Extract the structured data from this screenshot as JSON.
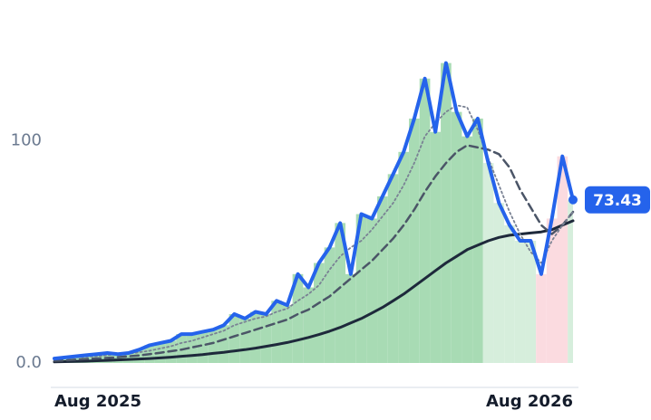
{
  "chart_data": {
    "type": "line",
    "categories": [
      "Aug 2025",
      null,
      null,
      null,
      null,
      null,
      null,
      null,
      null,
      null,
      null,
      null,
      null,
      null,
      null,
      null,
      null,
      null,
      null,
      null,
      null,
      null,
      null,
      null,
      null,
      null,
      null,
      null,
      null,
      null,
      null,
      null,
      null,
      null,
      null,
      null,
      null,
      null,
      null,
      null,
      null,
      null,
      null,
      null,
      null,
      null,
      null,
      null,
      null,
      "Aug 2026"
    ],
    "ylim": [
      -11,
      143
    ],
    "yticks": [
      {
        "value": 0,
        "label": "0.0"
      },
      100
    ],
    "bar_colors": [
      "#a8dbb4",
      "#a8dbb4",
      "#a8dbb4",
      "#a8dbb4",
      "#a8dbb4",
      "#a8dbb4",
      "#a8dbb4",
      "#a8dbb4",
      "#a8dbb4",
      "#a8dbb4",
      "#a8dbb4",
      "#a8dbb4",
      "#a8dbb4",
      "#a8dbb4",
      "#a8dbb4",
      "#a8dbb4",
      "#a8dbb4",
      "#a8dbb4",
      "#a8dbb4",
      "#a8dbb4",
      "#a8dbb4",
      "#a8dbb4",
      "#a8dbb4",
      "#a8dbb4",
      "#a8dbb4",
      "#a8dbb4",
      "#a8dbb4",
      "#a8dbb4",
      "#a8dbb4",
      "#a8dbb4",
      "#a8dbb4",
      "#a8dbb4",
      "#a8dbb4",
      "#a8dbb4",
      "#a8dbb4",
      "#a8dbb4",
      "#a8dbb4",
      "#a8dbb4",
      "#a8dbb4",
      "#a8dbb4",
      "#a8dbb4",
      "#d6eedc",
      "#d6eedc",
      "#d6eedc",
      "#d6eedc",
      "#d6eedc",
      "#fbdbe0",
      "#fbdbe0",
      "#fbdbe0",
      "#d6eedc"
    ],
    "series": [
      {
        "color": "#1e293b",
        "style": "solid",
        "width": 3,
        "values": [
          0.5,
          0.6,
          0.7,
          0.8,
          1,
          1.2,
          1.4,
          1.6,
          1.8,
          2,
          2.3,
          2.6,
          3,
          3.4,
          3.8,
          4.3,
          4.8,
          5.4,
          6,
          6.7,
          7.5,
          8.3,
          9.2,
          10.3,
          11.5,
          12.8,
          14.3,
          16,
          18,
          20,
          22.5,
          25,
          28,
          31,
          34.5,
          38,
          41.5,
          45,
          48,
          51,
          53,
          55,
          56.5,
          57.5,
          58,
          58.5,
          59,
          60,
          62,
          64
        ]
      },
      {
        "color": "#4b5567",
        "style": "dashed",
        "width": 2.5,
        "values": [
          1,
          1.2,
          1.5,
          1.8,
          2,
          2.3,
          2.6,
          3,
          3.4,
          4,
          4.6,
          5.3,
          6,
          7,
          8,
          9,
          10.5,
          12,
          13.5,
          15,
          16.5,
          18,
          19.5,
          22,
          24,
          27,
          30,
          34,
          38,
          42,
          46,
          51,
          56,
          62,
          69,
          77,
          84,
          90,
          95,
          98,
          97,
          96,
          94,
          88,
          78,
          70,
          62,
          58,
          62,
          68
        ]
      },
      {
        "color": "#7a8294",
        "style": "dotted",
        "width": 1.8,
        "values": [
          2,
          2.2,
          2.5,
          2.8,
          3,
          3.5,
          4,
          4.2,
          4.8,
          5.5,
          6.5,
          7.5,
          9,
          10,
          11.5,
          13,
          14.5,
          17,
          18.5,
          20,
          21,
          23,
          24.5,
          28,
          31,
          35,
          42,
          48,
          52,
          55,
          60,
          66,
          72,
          80,
          90,
          102,
          108,
          113,
          116,
          115,
          105,
          92,
          80,
          68,
          58,
          50,
          45,
          55,
          62,
          68
        ]
      },
      {
        "color": "#2563eb",
        "style": "solid",
        "width": 4,
        "bars": true,
        "values": [
          2,
          2.5,
          3,
          3.5,
          4,
          4.5,
          4,
          4.5,
          6,
          8,
          9,
          10,
          13,
          13,
          14,
          15,
          17,
          22,
          20,
          23,
          22,
          28,
          26,
          40,
          34,
          45,
          52,
          63,
          40,
          67,
          65,
          75,
          85,
          95,
          110,
          128,
          104,
          135,
          113,
          102,
          110,
          90,
          72,
          62,
          55,
          55,
          40,
          65,
          93,
          73.43
        ],
        "value_labels": [
          null,
          null,
          null,
          null,
          null,
          null,
          null,
          null,
          null,
          null,
          null,
          null,
          null,
          null,
          null,
          null,
          null,
          null,
          null,
          null,
          null,
          null,
          null,
          null,
          null,
          null,
          null,
          null,
          null,
          null,
          null,
          null,
          null,
          null,
          null,
          null,
          null,
          null,
          null,
          null,
          null,
          null,
          null,
          null,
          null,
          null,
          null,
          null,
          null,
          "73.43"
        ]
      }
    ]
  }
}
